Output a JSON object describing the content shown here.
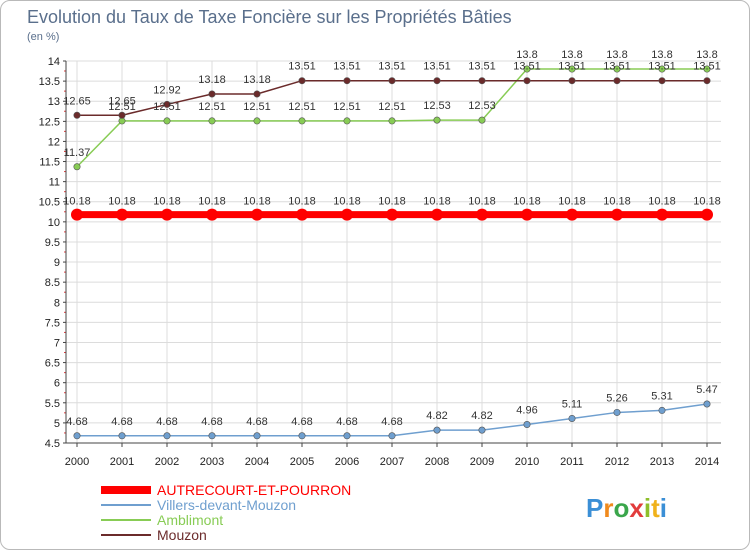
{
  "chart_data": {
    "type": "line",
    "title": "Evolution du Taux de Taxe Foncière sur les Propriétés Bâties",
    "subtitle": "(en %)",
    "xlabel": "",
    "ylabel": "",
    "categories": [
      "2000",
      "2001",
      "2002",
      "2003",
      "2004",
      "2005",
      "2006",
      "2007",
      "2008",
      "2009",
      "2010",
      "2011",
      "2012",
      "2013",
      "2014"
    ],
    "ylim": [
      4.5,
      14
    ],
    "yticks": [
      4.5,
      5,
      5.5,
      6,
      6.5,
      7,
      7.5,
      8,
      8.5,
      9,
      9.5,
      10,
      10.5,
      11,
      11.5,
      12,
      12.5,
      13,
      13.5,
      14
    ],
    "ytick_labels": [
      "4.5",
      "5",
      "5.5",
      "6",
      "6.5",
      "7",
      "7.5",
      "8",
      "8.5",
      "9",
      "9.5",
      "10",
      "10.5",
      "11",
      "11.5",
      "12",
      "12.5",
      "13",
      "13.5",
      "14"
    ],
    "grid": true,
    "legend_position": "bottom-left",
    "series": [
      {
        "name": "AUTRECOURT-ET-POURRON",
        "color": "#ff0000",
        "values": [
          10.18,
          10.18,
          10.18,
          10.18,
          10.18,
          10.18,
          10.18,
          10.18,
          10.18,
          10.18,
          10.18,
          10.18,
          10.18,
          10.18,
          10.18
        ],
        "labels": [
          "10.18",
          "10.18",
          "10.18",
          "10.18",
          "10.18",
          "10.18",
          "10.18",
          "10.18",
          "10.18",
          "10.18",
          "10.18",
          "10.18",
          "10.18",
          "10.18",
          "10.18"
        ]
      },
      {
        "name": "Villers-devant-Mouzon",
        "color": "#6f9fcf",
        "values": [
          4.68,
          4.68,
          4.68,
          4.68,
          4.68,
          4.68,
          4.68,
          4.68,
          4.82,
          4.82,
          4.96,
          5.11,
          5.26,
          5.31,
          5.47
        ],
        "labels": [
          "4.68",
          "4.68",
          "4.68",
          "4.68",
          "4.68",
          "4.68",
          "4.68",
          "4.68",
          "4.82",
          "4.82",
          "4.96",
          "5.11",
          "5.26",
          "5.31",
          "5.47"
        ]
      },
      {
        "name": "Amblimont",
        "color": "#88cc55",
        "values": [
          11.37,
          12.51,
          12.51,
          12.51,
          12.51,
          12.51,
          12.51,
          12.51,
          12.53,
          12.53,
          13.8,
          13.8,
          13.8,
          13.8,
          13.8
        ],
        "labels": [
          "11.37",
          "12.51",
          "12.51",
          "12.51",
          "12.51",
          "12.51",
          "12.51",
          "12.51",
          "12.53",
          "12.53",
          "13.8",
          "13.8",
          "13.8",
          "13.8",
          "13.8"
        ]
      },
      {
        "name": "Mouzon",
        "color": "#6b2b2b",
        "values": [
          12.65,
          12.65,
          12.92,
          13.18,
          13.18,
          13.51,
          13.51,
          13.51,
          13.51,
          13.51,
          13.51,
          13.51,
          13.51,
          13.51,
          13.51
        ],
        "labels": [
          "12.65",
          "12.65",
          "12.92",
          "13.18",
          "13.18",
          "13.51",
          "13.51",
          "13.51",
          "13.51",
          "13.51",
          "13.51",
          "13.51",
          "13.51",
          "13.51",
          "13.51"
        ]
      }
    ]
  },
  "brand": {
    "letters": [
      "P",
      "r",
      "o",
      "x",
      "i",
      "t",
      "i"
    ],
    "colors": [
      "#3b8fd6",
      "#f08a1c",
      "#3aa64b",
      "#e23c3c",
      "#8fbf2b",
      "#f0b21c",
      "#3b8fd6"
    ]
  }
}
